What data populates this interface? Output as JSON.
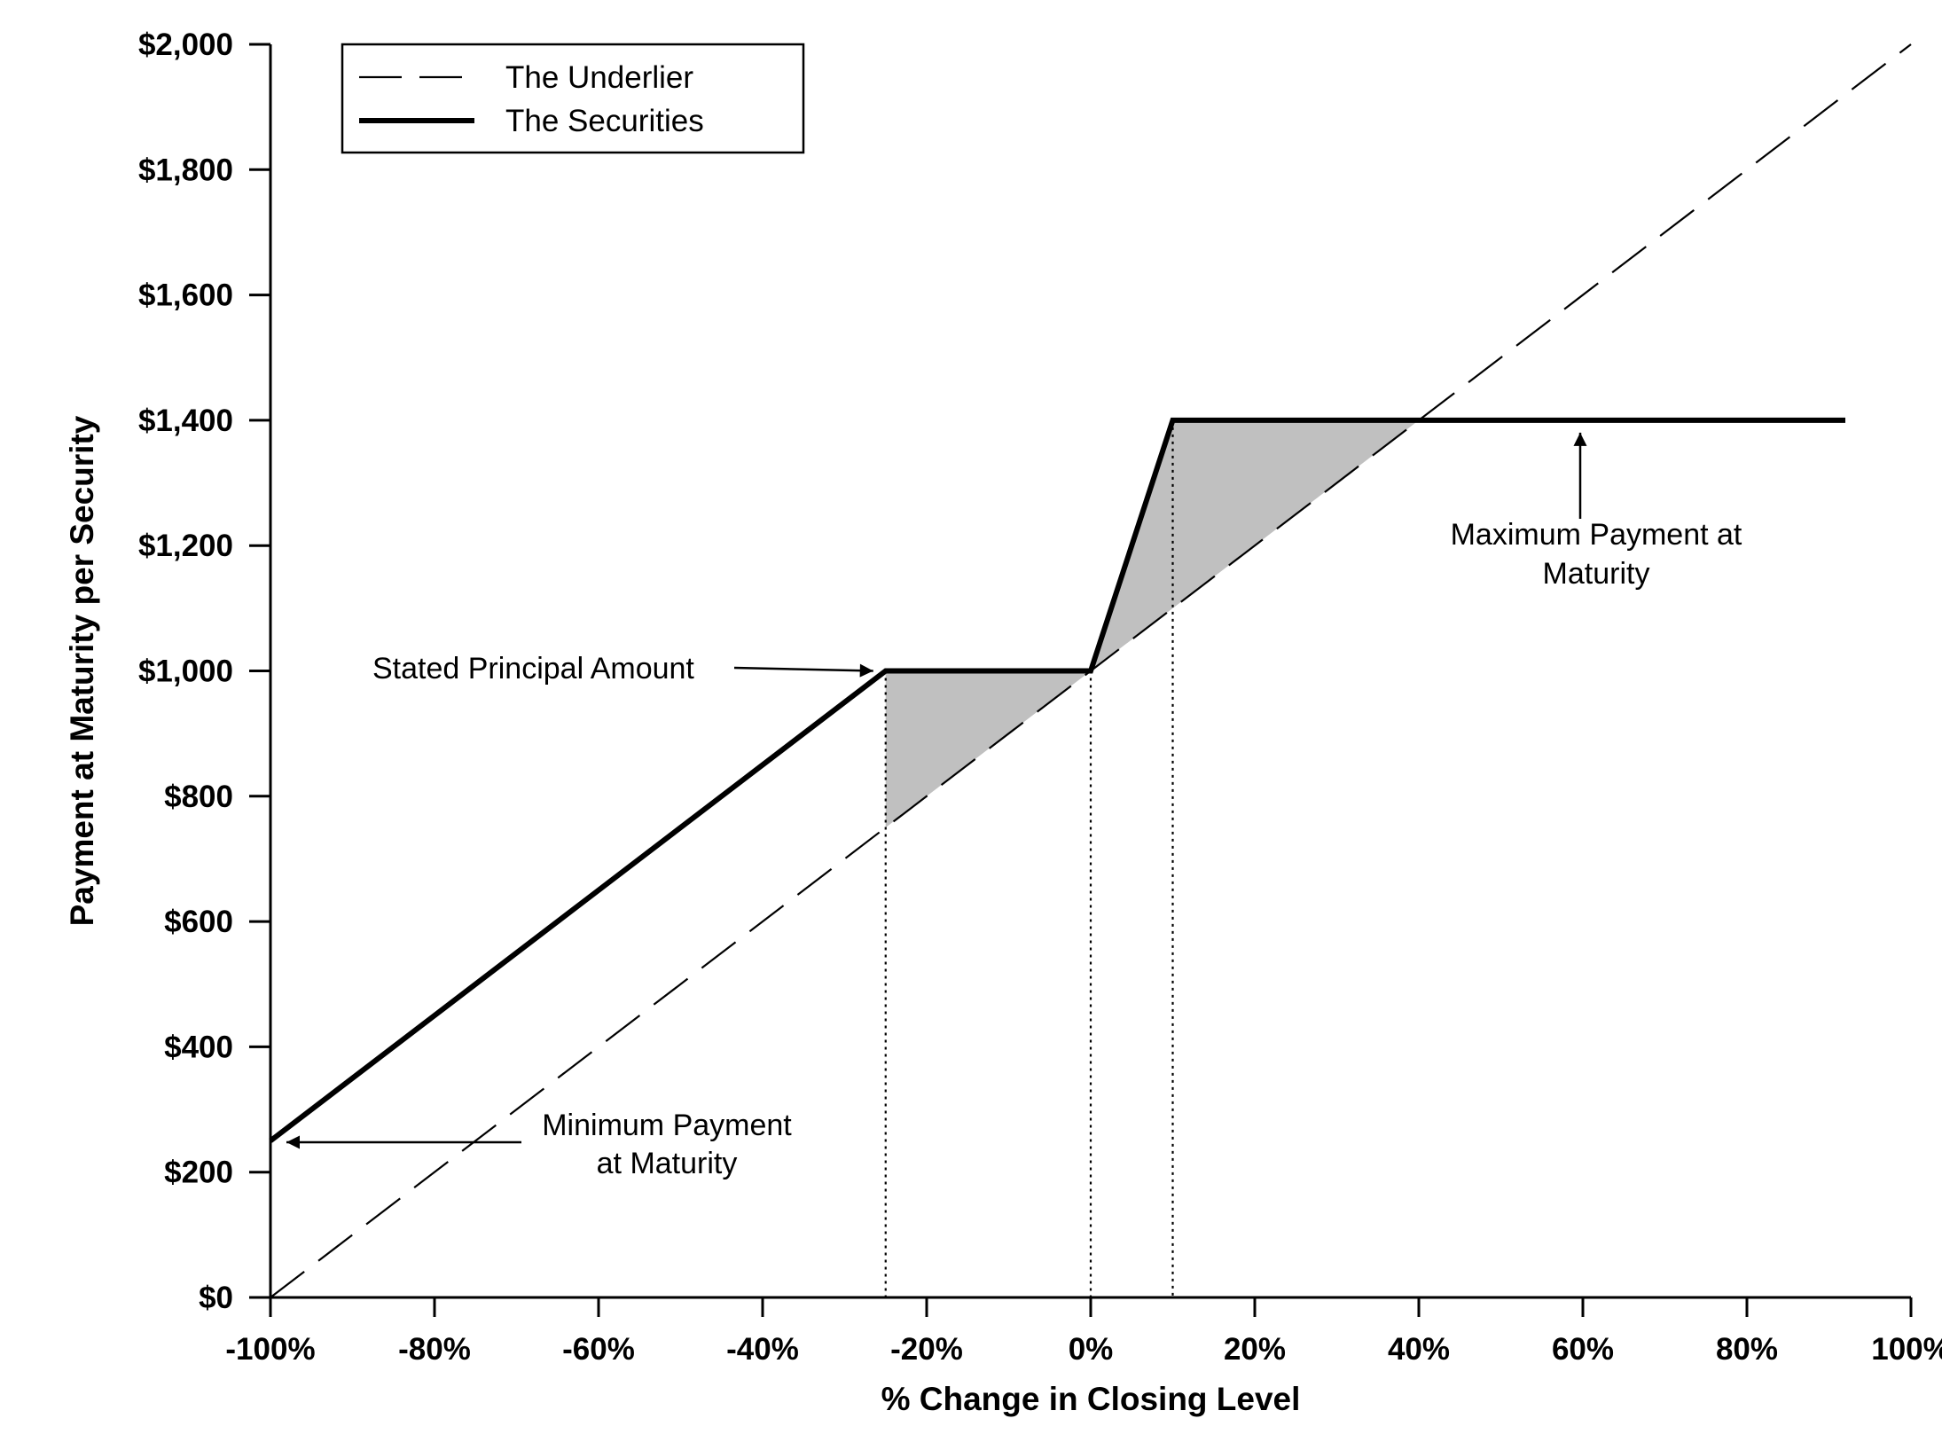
{
  "chart_data": {
    "type": "line",
    "xlabel": "% Change in Closing Level",
    "ylabel": "Payment at Maturity per Security",
    "xlim": [
      -100,
      100
    ],
    "ylim": [
      0,
      2000
    ],
    "x_ticks": [
      -100,
      -80,
      -60,
      -40,
      -20,
      0,
      20,
      40,
      60,
      80,
      100
    ],
    "x_tick_labels": [
      "-100%",
      "-80%",
      "-60%",
      "-40%",
      "-20%",
      "0%",
      "20%",
      "40%",
      "60%",
      "80%",
      "100%"
    ],
    "y_ticks": [
      0,
      200,
      400,
      600,
      800,
      1000,
      1200,
      1400,
      1600,
      1800,
      2000
    ],
    "y_tick_labels": [
      "$0",
      "$200",
      "$400",
      "$600",
      "$800",
      "$1,000",
      "$1,200",
      "$1,400",
      "$1,600",
      "$1,800",
      "$2,000"
    ],
    "grid": false,
    "legend_position": "top-left",
    "series": [
      {
        "name": "The Underlier",
        "style": "dashed",
        "color": "#000000",
        "x": [
          -100,
          100
        ],
        "y": [
          0,
          2000
        ]
      },
      {
        "name": "The Securities",
        "style": "solid",
        "color": "#000000",
        "x": [
          -100,
          -25,
          0,
          10,
          92
        ],
        "y": [
          250,
          1000,
          1000,
          1400,
          1400
        ]
      }
    ],
    "shaded_regions": [
      {
        "x": [
          -25,
          -25,
          0
        ],
        "y": [
          750,
          1000,
          1000
        ],
        "color": "#c0c0c0"
      },
      {
        "x": [
          0,
          10,
          40
        ],
        "y": [
          1000,
          1400,
          1400
        ],
        "color": "#c0c0c0"
      }
    ],
    "reference_lines_x": [
      -25,
      0,
      10
    ],
    "annotations": [
      {
        "text_lines": [
          "Stated Principal Amount"
        ],
        "target": [
          -25,
          1000
        ],
        "arrow": "right"
      },
      {
        "text_lines": [
          "Maximum Payment at",
          "Maturity"
        ],
        "target": [
          60,
          1400
        ],
        "arrow": "up"
      },
      {
        "text_lines": [
          "Minimum Payment",
          "at Maturity"
        ],
        "target": [
          -100,
          250
        ],
        "arrow": "left"
      }
    ]
  }
}
